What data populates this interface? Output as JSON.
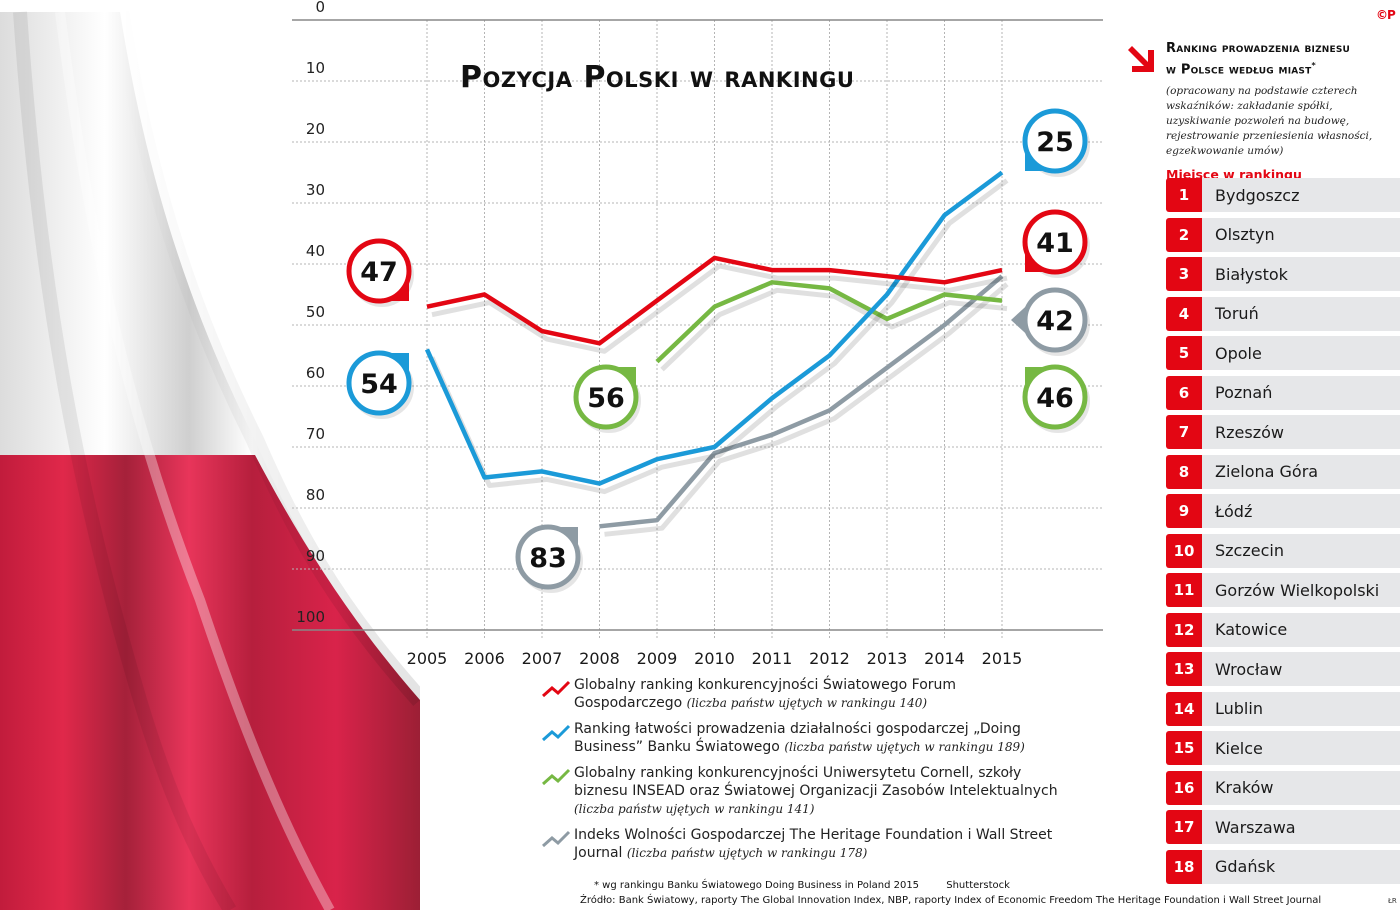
{
  "header": {
    "title": "Pozycja Polski w rankingu",
    "copyright_mark": "©P"
  },
  "colors": {
    "red": "#e30613",
    "blue": "#1b9ad8",
    "green": "#76b843",
    "gray": "#8e9ba4",
    "grid": "#b5b5b5",
    "panel_row_bg": "#e6e7e9"
  },
  "chart_data": {
    "type": "line",
    "title": "Pozycja Polski w rankingu",
    "xlabel": "",
    "ylabel": "",
    "x": [
      2005,
      2006,
      2007,
      2008,
      2009,
      2010,
      2011,
      2012,
      2013,
      2014,
      2015
    ],
    "y_ticks": [
      0,
      10,
      20,
      30,
      40,
      50,
      60,
      70,
      80,
      90,
      100
    ],
    "ylim": [
      0,
      100
    ],
    "y_inverted": true,
    "grid": true,
    "series": [
      {
        "name": "Globalny ranking konkurencyjności Światowego Forum Gospodarczego",
        "note": "(liczba państw ujętych w rankingu 140)",
        "color": "#e30613",
        "values": [
          47,
          45,
          51,
          53,
          46,
          39,
          41,
          41,
          42,
          43,
          41
        ],
        "start_label": "47",
        "end_label": "41"
      },
      {
        "name": "Ranking łatwości prowadzenia działalności gospodarczej „Doing Business” Banku Światowego",
        "note": "(liczba państw ujętych w rankingu 189)",
        "color": "#1b9ad8",
        "values": [
          54,
          75,
          74,
          76,
          72,
          70,
          62,
          55,
          45,
          32,
          25
        ],
        "start_label": "54",
        "end_label": "25"
      },
      {
        "name": "Globalny ranking konkurencyjności Uniwersytetu Cornell, szkoły biznesu INSEAD oraz Światowej Organizacji Zasobów Intelektualnych",
        "note": "(liczba państw ujętych w rankingu 141)",
        "color": "#76b843",
        "values": [
          null,
          null,
          null,
          null,
          56,
          47,
          43,
          44,
          49,
          45,
          46
        ],
        "start_label": "56",
        "end_label": "46"
      },
      {
        "name": "Indeks Wolności Gospodarczej The Heritage Foundation i Wall Street Journal",
        "note": "(liczba państw ujętych w rankingu 178)",
        "color": "#8e9ba4",
        "values": [
          null,
          null,
          null,
          83,
          82,
          71,
          68,
          64,
          57,
          50,
          42
        ],
        "start_label": "83",
        "end_label": "42"
      }
    ],
    "legend_position": "bottom"
  },
  "legend": [
    {
      "text": "Globalny ranking konkurencyjności Światowego Forum Gospodarczego",
      "note": "(liczba państw ujętych w rankingu 140)"
    },
    {
      "text": "Ranking łatwości prowadzenia działalności gospodarczej „Doing Business” Banku Światowego",
      "note": "(liczba państw ujętych w rankingu 189)"
    },
    {
      "text": "Globalny ranking konkurencyjności Uniwersytetu Cornell, szkoły biznesu INSEAD oraz Światowej Organizacji Zasobów Intelektualnych",
      "note": "(liczba państw ujętych w rankingu 141)"
    },
    {
      "text": "Indeks Wolności Gospodarczej The Heritage Foundation i Wall Street Journal",
      "note": "(liczba państw ujętych w rankingu 178)"
    }
  ],
  "panel": {
    "title_line1": "Ranking prowadzenia biznesu",
    "title_line2": "w Polsce według miast",
    "title_mark": "*",
    "description": "(opracowany na podstawie czterech wskaźników: zakładanie spółki, uzyskiwanie pozwoleń na budowę, rejestrowanie przeniesienia własności, egzekwowanie umów)",
    "subhead": "Miejsce w rankingu",
    "cities": [
      {
        "rank": "1",
        "name": "Bydgoszcz"
      },
      {
        "rank": "2",
        "name": "Olsztyn"
      },
      {
        "rank": "3",
        "name": "Białystok"
      },
      {
        "rank": "4",
        "name": "Toruń"
      },
      {
        "rank": "5",
        "name": "Opole"
      },
      {
        "rank": "6",
        "name": "Poznań"
      },
      {
        "rank": "7",
        "name": "Rzeszów"
      },
      {
        "rank": "8",
        "name": "Zielona Góra"
      },
      {
        "rank": "9",
        "name": "Łódź"
      },
      {
        "rank": "10",
        "name": "Szczecin"
      },
      {
        "rank": "11",
        "name": "Gorzów Wielkopolski"
      },
      {
        "rank": "12",
        "name": "Katowice"
      },
      {
        "rank": "13",
        "name": "Wrocław"
      },
      {
        "rank": "14",
        "name": "Lublin"
      },
      {
        "rank": "15",
        "name": "Kielce"
      },
      {
        "rank": "16",
        "name": "Kraków"
      },
      {
        "rank": "17",
        "name": "Warszawa"
      },
      {
        "rank": "18",
        "name": "Gdańsk"
      }
    ]
  },
  "footer": {
    "footnote": "* wg rankingu Banku Światowego Doing Business in Poland 2015",
    "photo_credit": "Shutterstock",
    "source": "Źródło: Bank Światowy, raporty The Global Innovation Index, NBP, raporty Index of Economic Freedom The Heritage Foundation i Wall Street Journal",
    "author": "ŁR"
  }
}
